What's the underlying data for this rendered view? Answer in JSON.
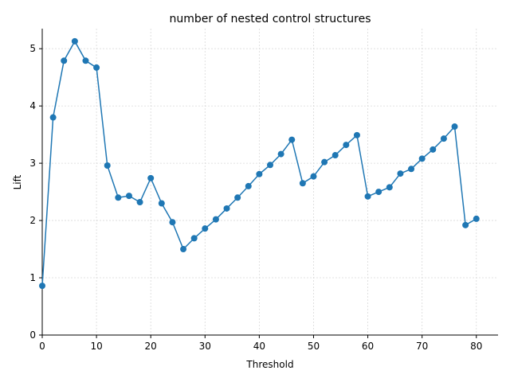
{
  "chart_data": {
    "type": "line",
    "title": "number of nested control structures",
    "xlabel": "Threshold",
    "ylabel": "Lift",
    "xlim": [
      0,
      84
    ],
    "ylim": [
      0,
      5.35
    ],
    "xticks": [
      0,
      10,
      20,
      30,
      40,
      50,
      60,
      70,
      80
    ],
    "yticks": [
      0,
      1,
      2,
      3,
      4,
      5
    ],
    "grid": true,
    "color": "#1f77b4",
    "markers": true,
    "x": [
      0,
      2,
      4,
      6,
      8,
      10,
      12,
      14,
      16,
      18,
      20,
      22,
      24,
      26,
      28,
      30,
      32,
      34,
      36,
      38,
      40,
      42,
      44,
      46,
      48,
      50,
      52,
      54,
      56,
      58,
      60,
      62,
      64,
      66,
      68,
      70,
      72,
      74,
      76,
      78,
      80
    ],
    "y": [
      0.86,
      3.8,
      4.79,
      5.13,
      4.79,
      4.67,
      2.96,
      2.4,
      2.43,
      2.32,
      2.74,
      2.3,
      1.97,
      1.5,
      1.69,
      1.86,
      2.02,
      2.21,
      2.4,
      2.6,
      2.81,
      2.97,
      3.16,
      3.41,
      2.65,
      2.77,
      3.02,
      3.14,
      3.32,
      3.49,
      2.42,
      2.5,
      2.58,
      2.82,
      2.9,
      3.08,
      3.24,
      3.43,
      3.64,
      1.92,
      2.03
    ]
  }
}
